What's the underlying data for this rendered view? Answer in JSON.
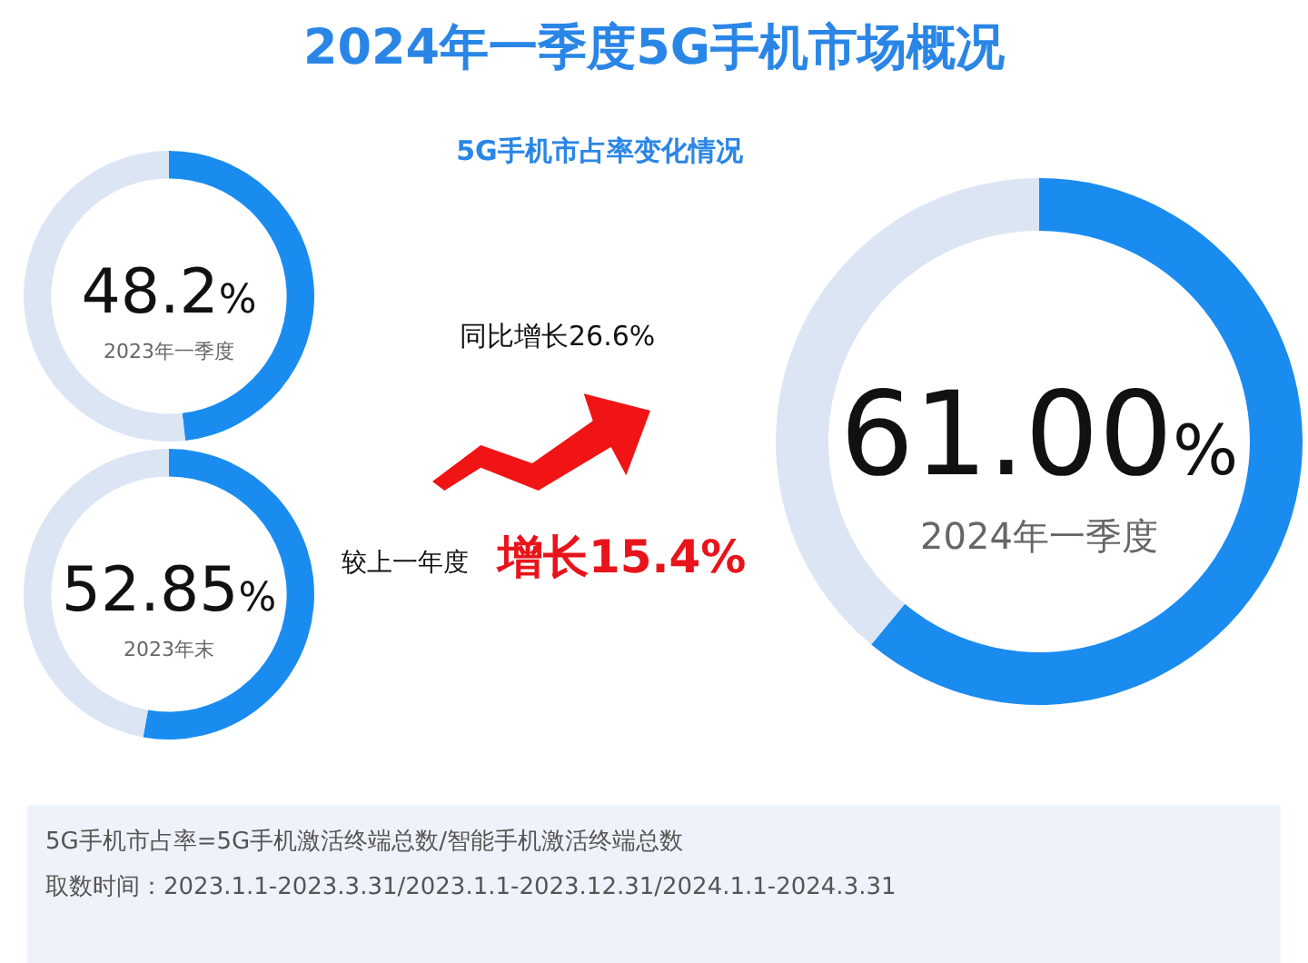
{
  "chart_data": [
    {
      "type": "other",
      "title": "2024年一季度5G手机市场概况",
      "subtitle": "5G手机市占率变化情况",
      "annotations": [
        "同比增长26.6%",
        "较上一年度",
        "增长15.4%",
        "5G手机市占率=5G手机激活终端总数/智能手机激活终端总数",
        "取数时间：2023.1.1-2023.3.31/2023.1.1-2023.12.31/2024.1.1-2024.3.31"
      ]
    },
    {
      "type": "donut",
      "title": "2023年一季度",
      "categories": [
        null,
        null
      ],
      "values": [
        48.2,
        51.8
      ],
      "colors": [
        "#1a8cf0",
        "#dce5f4"
      ],
      "value_labels": [
        "48.2%",
        null
      ]
    },
    {
      "type": "donut",
      "title": "2023年末",
      "categories": [
        null,
        null
      ],
      "values": [
        52.85,
        47.15
      ],
      "colors": [
        "#1a8cf0",
        "#dce5f4"
      ],
      "value_labels": [
        "52.85%",
        null
      ]
    },
    {
      "type": "donut",
      "title": "2024年一季度",
      "categories": [
        null,
        null
      ],
      "values": [
        61.0,
        39.0
      ],
      "colors": [
        "#1a8cf0",
        "#dce5f4"
      ],
      "value_labels": [
        "61.00%",
        null
      ]
    }
  ]
}
